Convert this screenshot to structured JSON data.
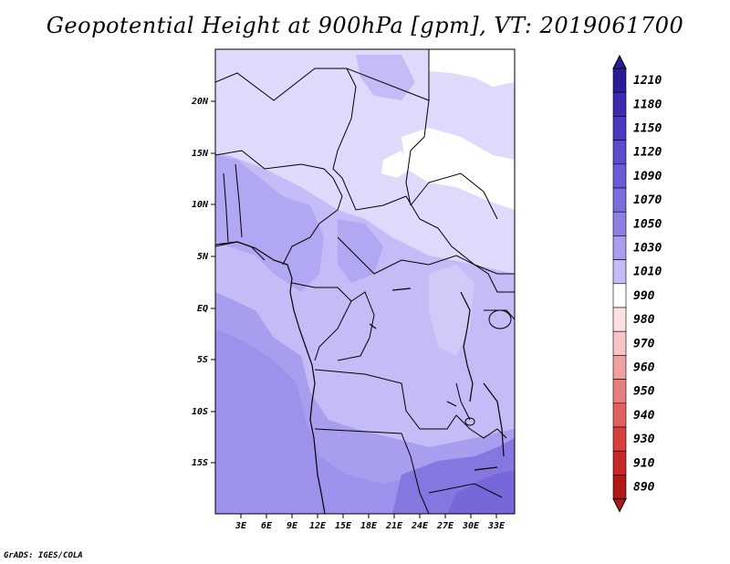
{
  "title": "Geopotential Height at 900hPa [gpm], VT: 2019061700",
  "credit": "GrADS: IGES/COLA",
  "map": {
    "lat_labels": [
      "20N",
      "15N",
      "10N",
      "5N",
      "EQ",
      "5S",
      "10S",
      "15S"
    ],
    "lon_labels": [
      "3E",
      "6E",
      "9E",
      "12E",
      "15E",
      "18E",
      "21E",
      "24E",
      "27E",
      "30E",
      "33E"
    ]
  },
  "colorbar": {
    "levels": [
      "1210",
      "1180",
      "1150",
      "1120",
      "1090",
      "1070",
      "1050",
      "1030",
      "1010",
      "990",
      "980",
      "970",
      "960",
      "950",
      "940",
      "930",
      "910",
      "890"
    ],
    "colors": [
      "#2a1c96",
      "#3c2ab0",
      "#4a3ac0",
      "#5a4ccc",
      "#6a5cd4",
      "#7a6edc",
      "#8c80e4",
      "#a89ef0",
      "#c4bcf6",
      "#ffffff",
      "#fde0e0",
      "#f8c4c4",
      "#f0a0a0",
      "#e88080",
      "#e06060",
      "#d84040",
      "#c82828",
      "#b01818"
    ]
  }
}
